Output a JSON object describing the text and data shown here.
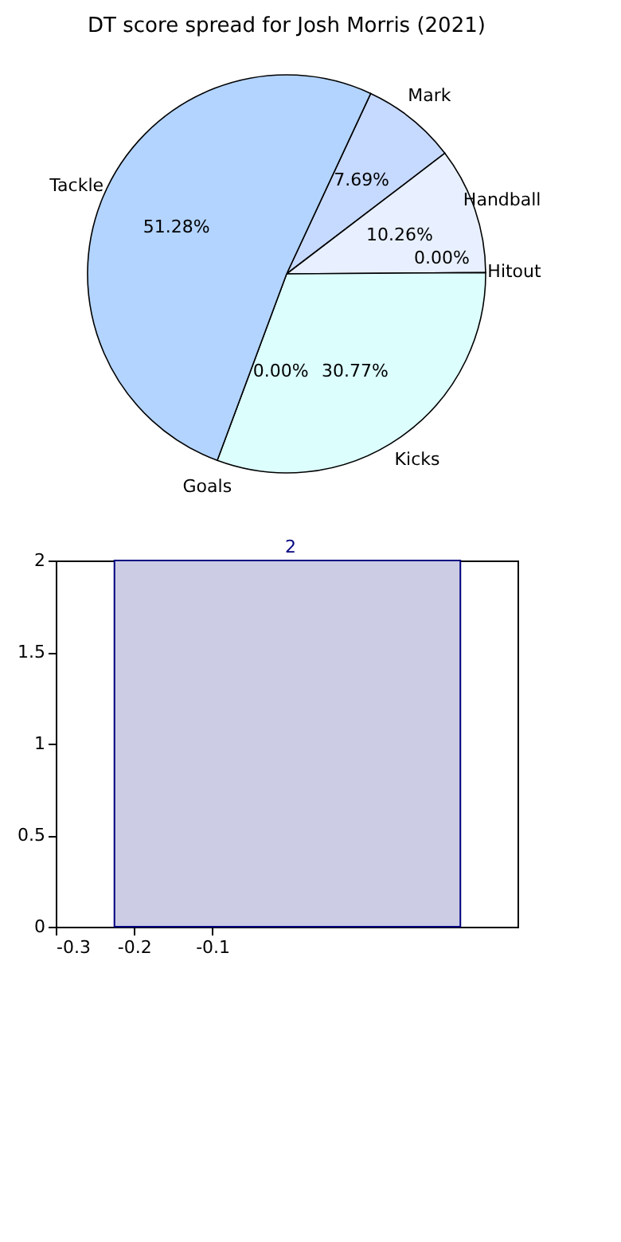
{
  "chart_data": [
    {
      "type": "pie",
      "title": "DT score spread for Josh Morris (2021)",
      "categories": [
        "Mark",
        "Handball",
        "Hitout",
        "Kicks",
        "Goals",
        "Tackle"
      ],
      "values": [
        7.69,
        10.26,
        0.0,
        30.77,
        0.0,
        51.28
      ],
      "value_labels": [
        "7.69%",
        "10.26%",
        "0.00%",
        "30.77%",
        "0.00%",
        "51.28%"
      ],
      "colors": [
        "#c6d9ff",
        "#e8f0ff",
        "#d0d0e8",
        "#dcfffe",
        "#d0d0e8",
        "#b3d4ff"
      ]
    },
    {
      "type": "histogram",
      "bins": [
        -0.225,
        0.217
      ],
      "values": [
        2.0
      ],
      "value_labels": [
        "2"
      ],
      "color": "#cccce5",
      "xlim": [
        -0.3,
        0.29
      ],
      "xticks": [
        -0.3,
        -0.2,
        -0.1
      ],
      "ylim": [
        0,
        2.0
      ],
      "yticks": [
        0.0,
        0.5,
        1.0,
        1.5,
        2.0
      ]
    }
  ]
}
